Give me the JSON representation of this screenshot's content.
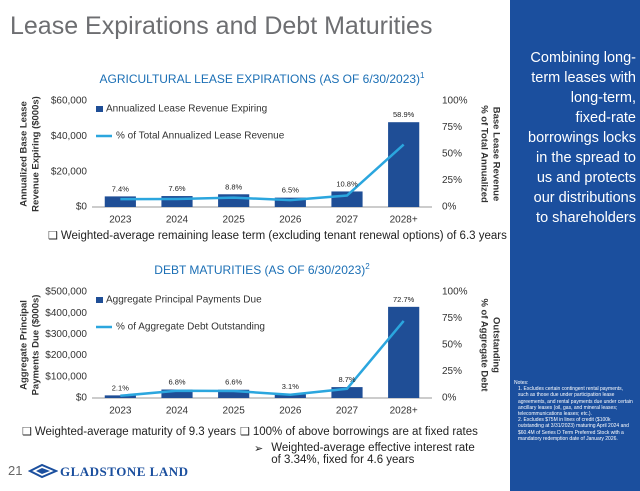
{
  "slide": {
    "title": "Lease Expirations and Debt Maturities",
    "page_number": "21",
    "logo": "GLADSTONE LAND",
    "sidebar": [
      "Combining long-",
      "term leases with",
      "long-term,",
      "fixed-rate",
      "borrowings locks",
      "in the spread to",
      "us and protects",
      "our distributions",
      "to shareholders"
    ],
    "notes": {
      "heading": "Notes:",
      "items": [
        "1. Excludes certain contingent rental payments, such as those due under participation lease agreements, and rental payments due under certain ancillary leases (oil, gas, and mineral leases; telecommunications leases; etc.).",
        "2. Excludes $75M in lines of credit ($100k outstanding at 3/31/2023) maturing April 2024 and $60.4M of Series D Term Preferred Stock with a mandatory redemption date of January 2026."
      ]
    },
    "bullets": [
      "Weighted-average remaining lease term (excluding tenant renewal options) of 6.3 years",
      "Weighted-average maturity of 9.3 years",
      "100% of above borrowings are at fixed rates",
      "Weighted-average effective interest rate of 3.34%, fixed for 4.6 years"
    ]
  },
  "chart_data": [
    {
      "type": "combo",
      "title": "AGRICULTURAL LEASE EXPIRATIONS (AS OF 6/30/2023)",
      "title_note": "1",
      "ylabel": [
        "Annualized Base Lease",
        "Revenue Expiring ($000s)"
      ],
      "y2label": [
        "% of Total Annualized",
        "Base Lease Revenue"
      ],
      "categories": [
        "2023",
        "2024",
        "2025",
        "2026",
        "2027",
        "2028+"
      ],
      "series": [
        {
          "name": "Annualized Lease Revenue Expiring",
          "color": "#1f4e96",
          "values": [
            6000,
            6200,
            7200,
            5300,
            8800,
            48000
          ]
        },
        {
          "name": "% of Total Annualized Lease Revenue",
          "color": "#2ba6de",
          "axis": "y2",
          "values": [
            7.4,
            7.6,
            8.8,
            6.5,
            10.8,
            58.9
          ],
          "value_labels": [
            "7.4%",
            "7.6%",
            "8.8%",
            "6.5%",
            "10.8%",
            "58.9%"
          ]
        }
      ],
      "ylim": [
        0,
        60000
      ],
      "yticks": [
        {
          "value": 0,
          "label": "$0"
        },
        {
          "value": 20000,
          "label": "$20,000"
        },
        {
          "value": 40000,
          "label": "$40,000"
        },
        {
          "value": 60000,
          "label": "$60,000"
        }
      ],
      "y2lim": [
        0,
        100
      ],
      "y2ticks": [
        {
          "value": 0,
          "label": "0%"
        },
        {
          "value": 25,
          "label": "25%"
        },
        {
          "value": 50,
          "label": "50%"
        },
        {
          "value": 75,
          "label": "75%"
        },
        {
          "value": 100,
          "label": "100%"
        }
      ]
    },
    {
      "type": "combo",
      "title": "DEBT MATURITIES (AS OF 6/30/2023)",
      "title_note": "2",
      "ylabel": [
        "Aggregate Principal",
        "Payments Due ($000s)"
      ],
      "y2label": [
        "% of Aggregate Debt",
        "Outstanding"
      ],
      "categories": [
        "2023",
        "2024",
        "2025",
        "2026",
        "2027",
        "2028+"
      ],
      "series": [
        {
          "name": "Aggregate Principal Payments Due",
          "color": "#1f4e96",
          "values": [
            12400,
            40000,
            39000,
            18300,
            51400,
            430000
          ]
        },
        {
          "name": "% of Aggregate Debt Outstanding",
          "color": "#2ba6de",
          "axis": "y2",
          "values": [
            2.1,
            6.8,
            6.6,
            3.1,
            8.7,
            72.7
          ],
          "value_labels": [
            "2.1%",
            "6.8%",
            "6.6%",
            "3.1%",
            "8.7%",
            "72.7%"
          ]
        }
      ],
      "ylim": [
        0,
        500000
      ],
      "yticks": [
        {
          "value": 0,
          "label": "$0"
        },
        {
          "value": 100000,
          "label": "$100,000"
        },
        {
          "value": 200000,
          "label": "$200,000"
        },
        {
          "value": 300000,
          "label": "$300,000"
        },
        {
          "value": 400000,
          "label": "$400,000"
        },
        {
          "value": 500000,
          "label": "$500,000"
        }
      ],
      "y2lim": [
        0,
        100
      ],
      "y2ticks": [
        {
          "value": 0,
          "label": "0%"
        },
        {
          "value": 25,
          "label": "25%"
        },
        {
          "value": 50,
          "label": "50%"
        },
        {
          "value": 75,
          "label": "75%"
        },
        {
          "value": 100,
          "label": "100%"
        }
      ]
    }
  ]
}
